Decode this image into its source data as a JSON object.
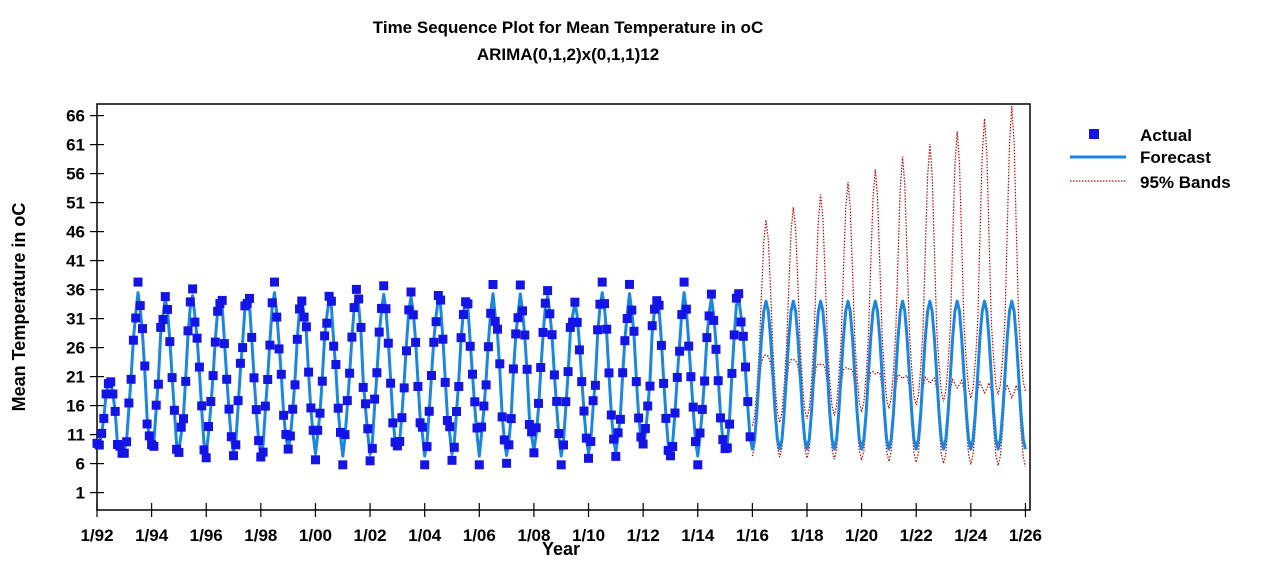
{
  "chart_data": {
    "type": "line",
    "title": "Time Sequence Plot for Mean Temperature in oC",
    "subtitle": "ARIMA(0,1,2)x(0,1,1)12",
    "xlabel": "Year",
    "ylabel": "Mean Temperature in oC",
    "x_tick_labels": [
      "1/92",
      "1/94",
      "1/96",
      "1/98",
      "1/00",
      "1/02",
      "1/04",
      "1/06",
      "1/08",
      "1/10",
      "1/12",
      "1/14",
      "1/16",
      "1/18",
      "1/20",
      "1/22",
      "1/24",
      "1/26"
    ],
    "y_ticks": [
      1,
      6,
      11,
      16,
      21,
      26,
      31,
      36,
      41,
      46,
      51,
      56,
      61,
      66
    ],
    "xlim": [
      "1992-01",
      "2026-03"
    ],
    "ylim": [
      -2,
      68
    ],
    "grid": false,
    "legend_position": "right",
    "colors": {
      "actual": "#1414e6",
      "forecast": "#1a86e0",
      "bands": "#c00000"
    },
    "series": [
      {
        "name": "Actual",
        "style": "square-markers",
        "start": "1992-01",
        "end": "2015-12",
        "frequency": "monthly",
        "annual_range_in_data": [
          5.8,
          37.3
        ],
        "values_1992_approx": [
          9.5,
          9.2,
          11.2,
          13.8,
          18.0,
          19.8,
          20.1,
          18.0,
          15.0,
          9.3,
          9.0,
          7.8
        ]
      },
      {
        "name": "Forecast",
        "style": "solid-line",
        "start": "1992-01",
        "end": "2026-01",
        "frequency": "monthly",
        "seasonal_range": [
          8.5,
          34.0
        ]
      },
      {
        "name": "95% Bands",
        "style": "dotted-line",
        "start": "2016-01",
        "end": "2026-01",
        "frequency": "monthly",
        "upper_peak_first_last": [
          44.5,
          65.3
        ],
        "lower_trough_first_last": [
          6.5,
          5.0
        ]
      }
    ]
  }
}
